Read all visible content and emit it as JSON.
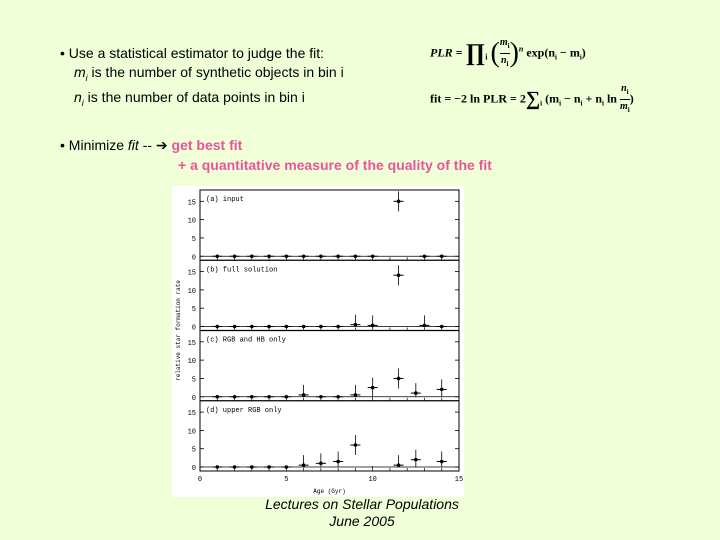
{
  "bullets": {
    "estimator": {
      "text": "• Use a statistical estimator to judge the fit:",
      "m_def_sym": "m",
      "m_def_sub": "i",
      "m_def_rest": " is the number of synthetic objects in bin i",
      "n_def_sym": "n",
      "n_def_sub": "i",
      "n_def_rest": " is the number of data points in bin i"
    },
    "minimize": {
      "prefix": "• Minimize ",
      "fit_word": "fit",
      "arrow": " -- ➔ ",
      "line1": "get best fit",
      "line2": "+ a quantitative measure of the quality of the fit"
    }
  },
  "equations": {
    "plr_lhs": "PLR =",
    "plr_prod": "∏",
    "plr_index": "i",
    "plr_frac_top": "m",
    "plr_frac_bottom": "n",
    "plr_exp_sup": "n",
    "plr_tail": "exp(n",
    "plr_tail2": " − m",
    "plr_tail3": ")",
    "fit_lhs": "fit = −2 ln PLR = 2",
    "fit_sum": "∑",
    "fit_mid": "(m",
    "fit_mid2": " − n",
    "fit_mid3": " + n",
    "fit_mid4": " ln",
    "fit_frac_top": "n",
    "fit_frac_bottom": "m",
    "fit_close": ")",
    "sub_i": "i"
  },
  "figure": {
    "y_label": "relative star formation rate",
    "x_label": "Age (Gyr)",
    "x_ticks": [
      "0",
      "5",
      "10",
      "15"
    ],
    "y_ticks": [
      "0",
      "5",
      "10",
      "15"
    ],
    "panels": [
      {
        "label": "(a) input"
      },
      {
        "label": "(b) full solution"
      },
      {
        "label": "(c) RGB and HB only"
      },
      {
        "label": "(d) upper RGB only"
      }
    ]
  },
  "chart_data": {
    "type": "scatter",
    "xlabel": "Age (Gyr)",
    "ylabel": "relative star formation rate",
    "xlim": [
      0,
      15
    ],
    "ylim": [
      0,
      17
    ],
    "panels": [
      {
        "name": "(a) input",
        "points": [
          {
            "x": 1,
            "y": 0
          },
          {
            "x": 2,
            "y": 0
          },
          {
            "x": 3,
            "y": 0
          },
          {
            "x": 4,
            "y": 0
          },
          {
            "x": 5,
            "y": 0
          },
          {
            "x": 6,
            "y": 0
          },
          {
            "x": 7,
            "y": 0
          },
          {
            "x": 8,
            "y": 0
          },
          {
            "x": 9,
            "y": 0
          },
          {
            "x": 10,
            "y": 0
          },
          {
            "x": 11.5,
            "y": 15
          },
          {
            "x": 13,
            "y": 0
          },
          {
            "x": 14,
            "y": 0
          }
        ]
      },
      {
        "name": "(b) full solution",
        "points": [
          {
            "x": 1,
            "y": 0
          },
          {
            "x": 2,
            "y": 0
          },
          {
            "x": 3,
            "y": 0
          },
          {
            "x": 4,
            "y": 0
          },
          {
            "x": 5,
            "y": 0
          },
          {
            "x": 6,
            "y": 0
          },
          {
            "x": 7,
            "y": 0
          },
          {
            "x": 8,
            "y": 0
          },
          {
            "x": 9,
            "y": 0.5
          },
          {
            "x": 10,
            "y": 0.3
          },
          {
            "x": 11.5,
            "y": 14
          },
          {
            "x": 13,
            "y": 0.3
          },
          {
            "x": 14,
            "y": 0
          }
        ]
      },
      {
        "name": "(c) RGB and HB only",
        "points": [
          {
            "x": 1,
            "y": 0
          },
          {
            "x": 2,
            "y": 0
          },
          {
            "x": 3,
            "y": 0
          },
          {
            "x": 4,
            "y": 0
          },
          {
            "x": 5,
            "y": 0
          },
          {
            "x": 6,
            "y": 0.5
          },
          {
            "x": 7,
            "y": 0
          },
          {
            "x": 8,
            "y": 0
          },
          {
            "x": 9,
            "y": 0.5
          },
          {
            "x": 10,
            "y": 2.5
          },
          {
            "x": 11.5,
            "y": 5
          },
          {
            "x": 12.5,
            "y": 1
          },
          {
            "x": 14,
            "y": 2
          }
        ]
      },
      {
        "name": "(d) upper RGB only",
        "points": [
          {
            "x": 1,
            "y": 0
          },
          {
            "x": 2,
            "y": 0
          },
          {
            "x": 3,
            "y": 0
          },
          {
            "x": 4,
            "y": 0
          },
          {
            "x": 5,
            "y": 0
          },
          {
            "x": 6,
            "y": 0.5
          },
          {
            "x": 7,
            "y": 1
          },
          {
            "x": 8,
            "y": 1.5
          },
          {
            "x": 9,
            "y": 6
          },
          {
            "x": 11.5,
            "y": 0.5
          },
          {
            "x": 12.5,
            "y": 2
          },
          {
            "x": 14,
            "y": 1.5
          }
        ]
      }
    ]
  },
  "footer": {
    "line1": "Lectures on Stellar Populations",
    "line2": "June 2005"
  }
}
